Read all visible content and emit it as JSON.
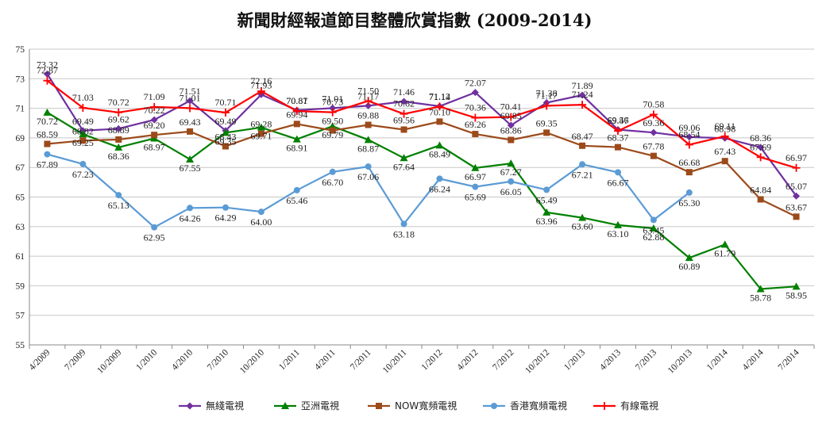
{
  "chart_data": {
    "type": "line",
    "title": "新聞財經報道節目整體欣賞指數 (2009-2014)",
    "xlabel": "",
    "ylabel": "",
    "ylim": [
      55,
      75
    ],
    "yticks": [
      55,
      57,
      59,
      61,
      63,
      65,
      67,
      69,
      71,
      73,
      75
    ],
    "grid": true,
    "legend_position": "bottom",
    "categories": [
      "4/2009",
      "7/2009",
      "10/2009",
      "1/2010",
      "4/2010",
      "7/2010",
      "10/2010",
      "1/2011",
      "4/2011",
      "7/2011",
      "10/2011",
      "1/2012",
      "4/2012",
      "7/2012",
      "10/2012",
      "1/2013",
      "4/2013",
      "7/2013",
      "10/2013",
      "1/2014",
      "4/2014",
      "7/2014"
    ],
    "series": [
      {
        "name": "無綫電視",
        "color": "#7030a0",
        "marker": "diamond",
        "values": [
          73.32,
          69.49,
          69.62,
          70.22,
          71.51,
          69.49,
          71.93,
          70.87,
          71.01,
          71.17,
          71.46,
          71.14,
          72.07,
          69.85,
          71.38,
          71.89,
          69.56,
          69.36,
          69.06,
          68.98,
          68.36,
          65.07
        ],
        "labels": [
          "73.32",
          "69.49",
          "69.62",
          "70.22",
          "71.51",
          "69.49",
          "71.93",
          "70.87",
          "71.01",
          "71.17",
          "71.46",
          "71.14",
          "72.07",
          "69.85",
          "71.38",
          "71.89",
          "69.56",
          "69.36",
          "69.06",
          "68.98",
          "68.36",
          "65.07"
        ]
      },
      {
        "name": "亞洲電視",
        "color": "#008000",
        "marker": "triangle",
        "values": [
          70.72,
          69.25,
          68.36,
          68.97,
          67.55,
          69.35,
          69.71,
          68.91,
          69.79,
          68.87,
          67.64,
          68.49,
          66.97,
          67.27,
          63.96,
          63.6,
          63.1,
          62.88,
          60.89,
          61.79,
          58.78,
          58.95
        ],
        "labels": [
          "70.72",
          "69.25",
          "68.36",
          "68.97",
          "67.55",
          "69.35",
          "69.71",
          "68.91",
          "69.79",
          "68.87",
          "67.64",
          "68.49",
          "66.97",
          "67.27",
          "63.96",
          "63.60",
          "63.10",
          "62.88",
          "60.89",
          "61.79",
          "58.78",
          "58.95"
        ]
      },
      {
        "name": "NOW寬頻電視",
        "color": "#9c4a1a",
        "marker": "square",
        "values": [
          68.59,
          68.82,
          68.89,
          69.2,
          69.43,
          68.43,
          69.28,
          69.94,
          69.5,
          69.88,
          69.56,
          70.1,
          69.26,
          68.86,
          69.35,
          68.47,
          68.37,
          67.78,
          66.68,
          67.43,
          64.84,
          63.67
        ],
        "labels": [
          "68.59",
          "68.82",
          "68.89",
          "69.20",
          "69.43",
          "68.43",
          "69.28",
          "69.94",
          "69.50",
          "69.88",
          "69.56",
          "70.10",
          "69.26",
          "68.86",
          "69.35",
          "68.47",
          "68.37",
          "67.78",
          "66.68",
          "67.43",
          "64.84",
          "63.67"
        ]
      },
      {
        "name": "香港寬頻電視",
        "color": "#5b9bd5",
        "marker": "circle",
        "values": [
          67.89,
          67.23,
          65.13,
          62.95,
          64.26,
          64.29,
          64.0,
          65.46,
          66.7,
          67.06,
          63.18,
          66.24,
          65.69,
          66.05,
          65.49,
          67.21,
          66.67,
          63.45,
          65.3,
          null,
          null,
          null
        ],
        "labels": [
          "67.89",
          "67.23",
          "65.13",
          "62.95",
          "64.26",
          "64.29",
          "64.00",
          "65.46",
          "66.70",
          "67.06",
          "63.18",
          "66.24",
          "65.69",
          "66.05",
          "65.49",
          "67.21",
          "66.67",
          "63.45",
          "65.30",
          "",
          "",
          ""
        ]
      },
      {
        "name": "有線電視",
        "color": "#ff0000",
        "marker": "plus",
        "values": [
          72.87,
          71.03,
          70.72,
          71.09,
          71.01,
          70.71,
          72.16,
          70.81,
          70.73,
          71.5,
          70.62,
          71.12,
          70.36,
          70.41,
          71.17,
          71.24,
          69.47,
          70.58,
          68.54,
          69.11,
          67.69,
          66.97
        ],
        "labels": [
          "72.87",
          "71.03",
          "70.72",
          "71.09",
          "71.01",
          "70.71",
          "72.16",
          "70.81",
          "70.73",
          "71.50",
          "70.62",
          "71.12",
          "70.36",
          "70.41",
          "71.17",
          "71.24",
          "69.47",
          "70.58",
          "68.54",
          "69.11",
          "67.69",
          "66.97"
        ]
      }
    ]
  }
}
